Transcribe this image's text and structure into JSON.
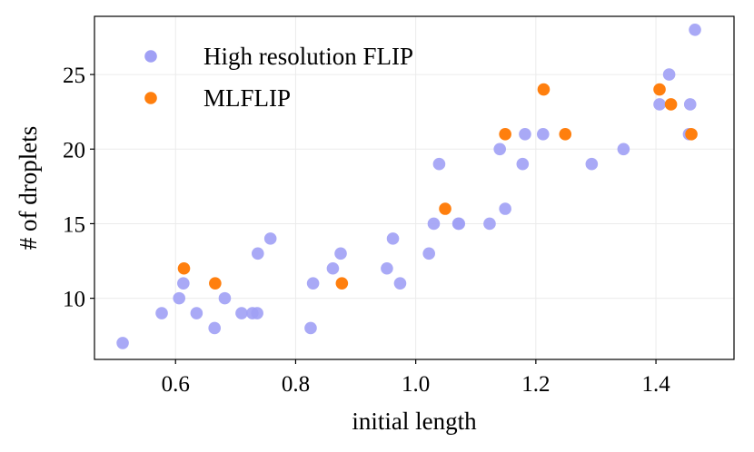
{
  "chart_data": {
    "type": "scatter",
    "title": "",
    "xlabel": "initial length",
    "ylabel": "# of droplets",
    "xlim": [
      0.465,
      1.53
    ],
    "ylim": [
      5.9,
      28.9
    ],
    "xticks": [
      0.6,
      0.8,
      1.0,
      1.2,
      1.4
    ],
    "xtick_labels": [
      "0.6",
      "0.8",
      "1.0",
      "1.2",
      "1.4"
    ],
    "yticks": [
      10,
      15,
      20,
      25
    ],
    "ytick_labels": [
      "10",
      "15",
      "20",
      "25"
    ],
    "grid": true,
    "legend_position": "top-left",
    "series": [
      {
        "name": "High resolution FLIP",
        "color": "#a0a0f5",
        "points": [
          [
            0.512,
            7
          ],
          [
            0.577,
            9
          ],
          [
            0.606,
            10
          ],
          [
            0.613,
            11
          ],
          [
            0.635,
            9
          ],
          [
            0.665,
            8
          ],
          [
            0.682,
            10
          ],
          [
            0.71,
            9
          ],
          [
            0.728,
            9
          ],
          [
            0.736,
            9
          ],
          [
            0.737,
            13
          ],
          [
            0.758,
            14
          ],
          [
            0.825,
            8
          ],
          [
            0.829,
            11
          ],
          [
            0.862,
            12
          ],
          [
            0.875,
            13
          ],
          [
            0.952,
            12
          ],
          [
            0.962,
            14
          ],
          [
            0.974,
            11
          ],
          [
            1.022,
            13
          ],
          [
            1.03,
            15
          ],
          [
            1.039,
            19
          ],
          [
            1.071,
            15
          ],
          [
            1.072,
            15
          ],
          [
            1.123,
            15
          ],
          [
            1.14,
            20
          ],
          [
            1.149,
            16
          ],
          [
            1.178,
            19
          ],
          [
            1.182,
            21
          ],
          [
            1.212,
            21
          ],
          [
            1.293,
            19
          ],
          [
            1.346,
            20
          ],
          [
            1.406,
            23
          ],
          [
            1.422,
            25
          ],
          [
            1.455,
            21
          ],
          [
            1.457,
            23
          ],
          [
            1.465,
            28
          ]
        ]
      },
      {
        "name": "MLFLIP",
        "color": "#ff7f0e",
        "points": [
          [
            0.614,
            12
          ],
          [
            0.666,
            11
          ],
          [
            0.877,
            11
          ],
          [
            1.049,
            16
          ],
          [
            1.149,
            21
          ],
          [
            1.213,
            24
          ],
          [
            1.249,
            21
          ],
          [
            1.406,
            24
          ],
          [
            1.425,
            23
          ],
          [
            1.459,
            21
          ]
        ]
      }
    ]
  }
}
